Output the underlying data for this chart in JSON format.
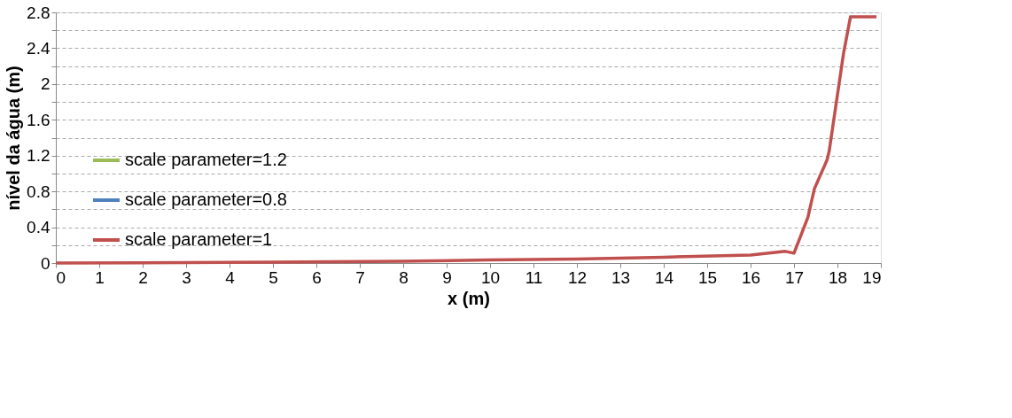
{
  "chart_data": {
    "type": "line",
    "xlabel": "x (m)",
    "ylabel": "nível da água (m)",
    "x": [
      0,
      2,
      5,
      8,
      10,
      12,
      14,
      16,
      16.8,
      17.0,
      17.32,
      17.47,
      17.76,
      17.81,
      18.14,
      18.3,
      18.9
    ],
    "series": [
      {
        "name": "scale parameter=1.2",
        "color": "#9bbb59",
        "values": [
          null,
          null,
          null,
          null,
          null,
          null,
          null,
          null,
          null,
          null,
          null,
          null,
          null,
          null,
          null,
          null,
          null
        ]
      },
      {
        "name": "scale parameter=0.8",
        "color": "#4f81bd",
        "values": [
          null,
          null,
          null,
          null,
          null,
          null,
          null,
          null,
          null,
          null,
          null,
          null,
          null,
          null,
          null,
          null,
          null
        ]
      },
      {
        "name": "scale parameter=1",
        "color": "#c0504d",
        "values": [
          0,
          0.003,
          0.01,
          0.02,
          0.035,
          0.045,
          0.065,
          0.09,
          0.13,
          0.11,
          0.51,
          0.83,
          1.15,
          1.25,
          2.34,
          2.75,
          2.75
        ]
      }
    ],
    "xlim": [
      0,
      19
    ],
    "xticks": [
      0,
      1,
      2,
      3,
      4,
      5,
      6,
      7,
      8,
      9,
      10,
      11,
      12,
      13,
      14,
      15,
      16,
      17,
      18,
      19
    ],
    "ylim": [
      0,
      2.8
    ],
    "yticks": [
      0,
      {
        "value": 0.2,
        "label": null
      },
      0.4,
      {
        "value": 0.6,
        "label": null
      },
      0.8,
      {
        "value": 1.0,
        "label": null
      },
      1.2,
      {
        "value": 1.4,
        "label": null
      },
      1.6,
      {
        "value": 1.8,
        "label": null
      },
      2,
      {
        "value": 2.2,
        "label": null
      },
      2.4,
      {
        "value": 2.6,
        "label": null
      },
      2.8
    ],
    "grid": "y",
    "legend": "left",
    "marker": "none",
    "line_style": "solid"
  }
}
